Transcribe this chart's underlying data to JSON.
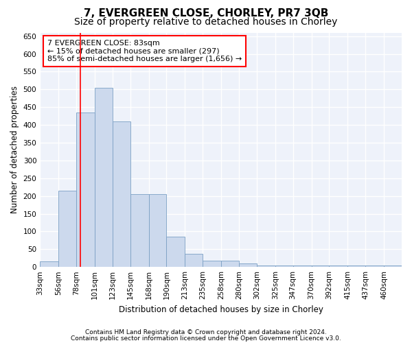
{
  "title": "7, EVERGREEN CLOSE, CHORLEY, PR7 3QB",
  "subtitle": "Size of property relative to detached houses in Chorley",
  "xlabel": "Distribution of detached houses by size in Chorley",
  "ylabel": "Number of detached properties",
  "footnote1": "Contains HM Land Registry data © Crown copyright and database right 2024.",
  "footnote2": "Contains public sector information licensed under the Open Government Licence v3.0.",
  "annotation_line1": "7 EVERGREEN CLOSE: 83sqm",
  "annotation_line2": "← 15% of detached houses are smaller (297)",
  "annotation_line3": "85% of semi-detached houses are larger (1,656) →",
  "bar_color": "#ccd9ed",
  "bar_edge_color": "#7a9fc4",
  "red_line_x": 83,
  "bins": [
    33,
    56,
    78,
    101,
    123,
    145,
    168,
    190,
    213,
    235,
    258,
    280,
    302,
    325,
    347,
    370,
    392,
    415,
    437,
    460,
    482
  ],
  "values": [
    15,
    215,
    435,
    505,
    410,
    205,
    205,
    85,
    38,
    18,
    18,
    10,
    5,
    5,
    5,
    5,
    5,
    5,
    5,
    5
  ],
  "ylim": [
    0,
    660
  ],
  "yticks": [
    0,
    50,
    100,
    150,
    200,
    250,
    300,
    350,
    400,
    450,
    500,
    550,
    600,
    650
  ],
  "background_color": "#eef2fa",
  "grid_color": "#ffffff",
  "title_fontsize": 11,
  "subtitle_fontsize": 10,
  "axis_label_fontsize": 8.5,
  "tick_fontsize": 7.5,
  "footnote_fontsize": 6.5,
  "annotation_fontsize": 8
}
